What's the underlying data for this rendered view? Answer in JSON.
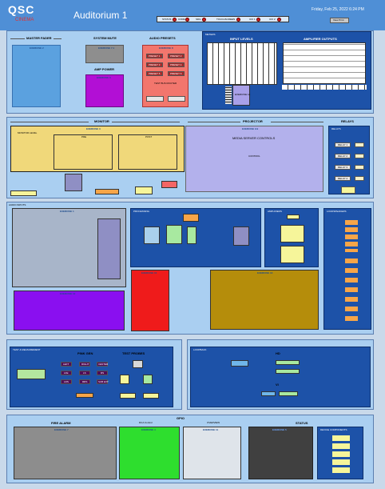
{
  "header": {
    "logo": "QSC",
    "logo_sub": "CINEMA",
    "title": "Auditorium 1",
    "datetime": "Friday, Feb 25, 2022 6:24 PM",
    "view_btn": "View Print",
    "status": [
      {
        "label": "STATUS"
      },
      {
        "label": "CORE"
      },
      {
        "label": "SDG"
      },
      {
        "label": "TOUCHSCREEN"
      },
      {
        "label": "UCI 1"
      },
      {
        "label": "UCI 2"
      }
    ]
  },
  "top": {
    "master_fader": "MASTER FADER",
    "system_mute": "SYSTEM MUTE",
    "amp_power": "AMP POWER",
    "audio_presets": "AUDIO PRESETS",
    "ex2": "EXERCISE 2",
    "ex71": "EXERCISE 7.1",
    "ex6": "EXERCISE 6",
    "ex8": "EXERCISE 8",
    "presets": [
      "PRESET 1",
      "PRESET 2",
      "PRESET 3",
      "PRESET 4",
      "PRESET 5",
      "PRESET 6"
    ],
    "test_bus": "TEST BUS ROUTER",
    "meters": "METERS",
    "input_levels": "INPUT LEVELS",
    "amp_outputs": "AMPLIFIER OUTPUTS",
    "ex14": "EXERCISE 14"
  },
  "mid": {
    "monitor": "MONITOR",
    "projector": "PROJECTOR",
    "relays": "RELAYS",
    "ex3": "EXERCISE 3",
    "ex99": "EXERCISE 9.9",
    "monitor_level": "MONITOR LEVEL",
    "pre": "PRE",
    "post": "POST",
    "media_server": "MEDIA SERVER CONTROLS",
    "control": "CONTROL",
    "relays_head": "RELAYS",
    "relay_btns": [
      "RELAY 1",
      "RELAY 2",
      "RELAY 3",
      "RELAY 4"
    ]
  },
  "audio": {
    "title": "AUDIO INPUTS",
    "ex1": "EXERCISE 1",
    "ex12": "EXERCISE 12",
    "ex10": "EXERCISE 10",
    "ex13": "EXERCISE 13",
    "processing": "PROCESSING",
    "amplifiers": "AMPLIFIERS",
    "loudspeakers": "LOUDSPEAKERS"
  },
  "test": {
    "title": "TEST & MEASUREMENT",
    "pink_gen": "PINK GEN",
    "test_probes": "TEST PROBES",
    "loopback": "LOOPBACK",
    "pink": [
      "LEFT",
      "RIGHT",
      "CENTER",
      "LFE",
      "LS",
      "RS",
      "LRS",
      "RRS",
      "SUB EXT"
    ],
    "hd": "HD",
    "vi": "VI"
  },
  "bottom": {
    "gpio": "GPIO",
    "fire": "FIRE ALARM",
    "status": "STATUS",
    "ex7": "EXERCISE 7",
    "ex4": "EXERCISE 4",
    "ex11": "EXERCISE 11",
    "ex5": "EXERCISE 5",
    "dca": "DCA Control",
    "overview": "OVERVIEW",
    "device_comp": "DEVICE COMPONENTS"
  }
}
